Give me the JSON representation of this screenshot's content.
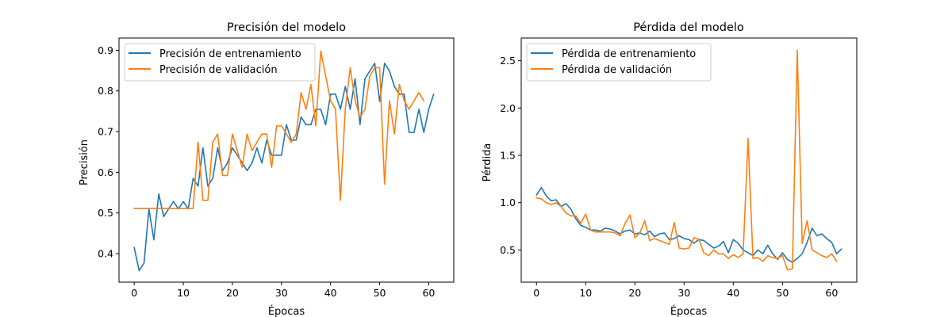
{
  "colors": {
    "training": "#1f77b4",
    "validation": "#ff7f0e"
  },
  "chart_data": [
    {
      "type": "line",
      "title": "Precisión del modelo",
      "xlabel": "Épocas",
      "ylabel": "Precisión",
      "xlim": [
        -3.1,
        65.1
      ],
      "ylim": [
        0.33,
        0.93
      ],
      "xticks": [
        0,
        10,
        20,
        30,
        40,
        50,
        60
      ],
      "yticks": [
        0.4,
        0.5,
        0.6,
        0.7,
        0.8,
        0.9
      ],
      "ytick_labels": [
        "0.4",
        "0.5",
        "0.6",
        "0.7",
        "0.8",
        "0.9"
      ],
      "legend_position": "top-left",
      "grid": false,
      "series": [
        {
          "name": "Precisión de entrenamiento",
          "color": "#1f77b4",
          "values": [
            0.415,
            0.358,
            0.377,
            0.51,
            0.434,
            0.547,
            0.491,
            0.51,
            0.528,
            0.51,
            0.528,
            0.51,
            0.585,
            0.566,
            0.66,
            0.566,
            0.585,
            0.66,
            0.604,
            0.623,
            0.66,
            0.642,
            0.623,
            0.604,
            0.623,
            0.66,
            0.623,
            0.679,
            0.642,
            0.642,
            0.642,
            0.717,
            0.679,
            0.679,
            0.736,
            0.717,
            0.717,
            0.755,
            0.755,
            0.717,
            0.792,
            0.792,
            0.755,
            0.811,
            0.755,
            0.83,
            0.717,
            0.83,
            0.849,
            0.868,
            0.774,
            0.868,
            0.849,
            0.811,
            0.792,
            0.792,
            0.698,
            0.698,
            0.755,
            0.698,
            0.755,
            0.792
          ]
        },
        {
          "name": "Precisión de validación",
          "color": "#ff7f0e",
          "values": [
            0.511,
            0.511,
            0.511,
            0.511,
            0.511,
            0.511,
            0.511,
            0.511,
            0.511,
            0.511,
            0.511,
            0.511,
            0.511,
            0.674,
            0.531,
            0.531,
            0.674,
            0.694,
            0.592,
            0.592,
            0.694,
            0.653,
            0.612,
            0.694,
            0.653,
            0.674,
            0.694,
            0.694,
            0.612,
            0.714,
            0.714,
            0.694,
            0.674,
            0.694,
            0.796,
            0.755,
            0.816,
            0.714,
            0.898,
            0.837,
            0.776,
            0.755,
            0.531,
            0.755,
            0.857,
            0.776,
            0.735,
            0.755,
            0.837,
            0.857,
            0.857,
            0.571,
            0.776,
            0.694,
            0.816,
            0.776,
            0.755,
            0.776,
            0.796,
            0.776
          ]
        }
      ]
    },
    {
      "type": "line",
      "title": "Pérdida del modelo",
      "xlabel": "Épocas",
      "ylabel": "Pérdida",
      "xlim": [
        -3.1,
        65.1
      ],
      "ylim": [
        0.16,
        2.74
      ],
      "xticks": [
        0,
        10,
        20,
        30,
        40,
        50,
        60
      ],
      "yticks": [
        0.5,
        1.0,
        1.5,
        2.0,
        2.5
      ],
      "ytick_labels": [
        "0.5",
        "1.0",
        "1.5",
        "2.0",
        "2.5"
      ],
      "legend_position": "top-left",
      "grid": false,
      "series": [
        {
          "name": "Pérdida de entrenamiento",
          "color": "#1f77b4",
          "values": [
            1.08,
            1.16,
            1.07,
            1.02,
            1.03,
            0.96,
            0.99,
            0.93,
            0.83,
            0.76,
            0.74,
            0.71,
            0.71,
            0.7,
            0.73,
            0.72,
            0.7,
            0.67,
            0.7,
            0.71,
            0.67,
            0.68,
            0.66,
            0.7,
            0.64,
            0.67,
            0.68,
            0.61,
            0.62,
            0.65,
            0.62,
            0.61,
            0.57,
            0.61,
            0.6,
            0.56,
            0.52,
            0.54,
            0.59,
            0.47,
            0.61,
            0.57,
            0.5,
            0.47,
            0.44,
            0.5,
            0.46,
            0.55,
            0.46,
            0.4,
            0.47,
            0.4,
            0.37,
            0.41,
            0.46,
            0.58,
            0.73,
            0.65,
            0.67,
            0.62,
            0.58,
            0.46,
            0.51
          ]
        },
        {
          "name": "Pérdida de validación",
          "color": "#ff7f0e",
          "values": [
            1.05,
            1.04,
            1.0,
            0.98,
            1.0,
            0.96,
            0.89,
            0.86,
            0.86,
            0.78,
            0.88,
            0.71,
            0.69,
            0.69,
            0.69,
            0.69,
            0.68,
            0.65,
            0.78,
            0.87,
            0.63,
            0.68,
            0.81,
            0.6,
            0.62,
            0.6,
            0.58,
            0.56,
            0.79,
            0.52,
            0.51,
            0.52,
            0.63,
            0.61,
            0.47,
            0.44,
            0.5,
            0.46,
            0.46,
            0.41,
            0.45,
            0.42,
            0.46,
            1.68,
            0.41,
            0.42,
            0.38,
            0.44,
            0.42,
            0.41,
            0.44,
            0.29,
            0.3,
            2.61,
            0.57,
            0.81,
            0.5,
            0.47,
            0.44,
            0.42,
            0.46,
            0.38
          ]
        }
      ]
    }
  ]
}
